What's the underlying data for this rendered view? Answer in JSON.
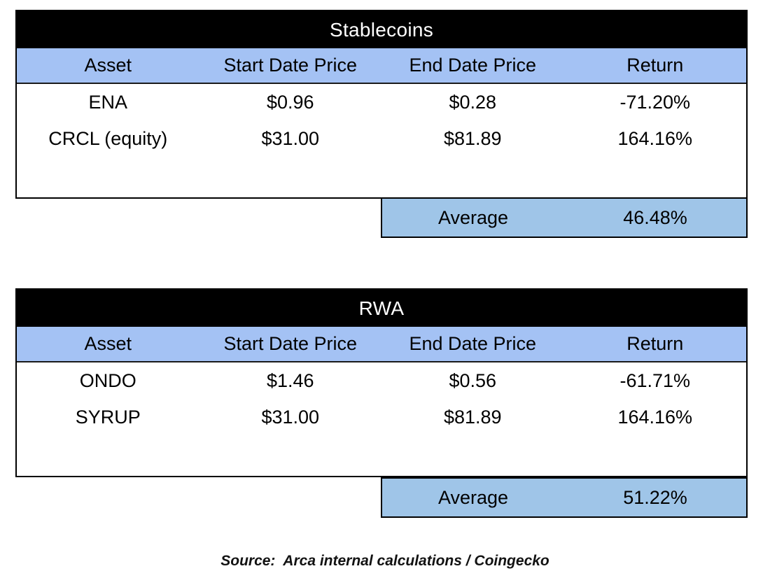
{
  "colors": {
    "title_bar_bg": "#000000",
    "title_bar_text": "#ffffff",
    "header_row_bg": "#a4c2f4",
    "average_row_bg": "#9fc5e8",
    "border": "#000000",
    "body_bg": "#ffffff"
  },
  "tables": [
    {
      "title": "Stablecoins",
      "columns": [
        "Asset",
        "Start Date Price",
        "End Date Price",
        "Return"
      ],
      "rows": [
        {
          "asset": "ENA",
          "start": "$0.96",
          "end": "$0.28",
          "ret": "-71.20%"
        },
        {
          "asset": "CRCL (equity)",
          "start": "$31.00",
          "end": "$81.89",
          "ret": "164.16%"
        }
      ],
      "average_label": "Average",
      "average_value": "46.48%"
    },
    {
      "title": "RWA",
      "columns": [
        "Asset",
        "Start Date Price",
        "End Date Price",
        "Return"
      ],
      "rows": [
        {
          "asset": "ONDO",
          "start": "$1.46",
          "end": "$0.56",
          "ret": "-61.71%"
        },
        {
          "asset": "SYRUP",
          "start": "$31.00",
          "end": "$81.89",
          "ret": "164.16%"
        }
      ],
      "average_label": "Average",
      "average_value": "51.22%"
    }
  ],
  "source_note": "Source:  Arca internal calculations / Coingecko"
}
